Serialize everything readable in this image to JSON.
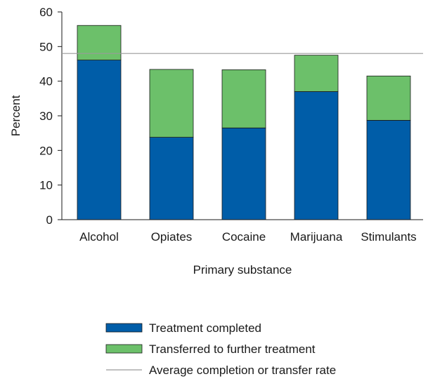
{
  "chart_data": {
    "type": "bar",
    "stacked": true,
    "title": "",
    "xlabel": "Primary substance",
    "ylabel": "Percent",
    "ylim": [
      0,
      60
    ],
    "yticks": [
      0,
      10,
      20,
      30,
      40,
      50,
      60
    ],
    "grid": false,
    "legend_position": "bottom",
    "categories": [
      "Alcohol",
      "Opiates",
      "Cocaine",
      "Marijuana",
      "Stimulants"
    ],
    "series": [
      {
        "name": "Treatment completed",
        "color": "#005da8",
        "values": [
          46.1,
          23.8,
          26.5,
          37.0,
          28.7
        ]
      },
      {
        "name": "Transferred to further treatment",
        "color": "#6cc06a",
        "values": [
          10.0,
          19.6,
          16.8,
          10.5,
          12.8
        ]
      }
    ],
    "reference_line": {
      "name": "Average completion or transfer rate",
      "value": 48,
      "color": "#9a9a9a"
    }
  }
}
